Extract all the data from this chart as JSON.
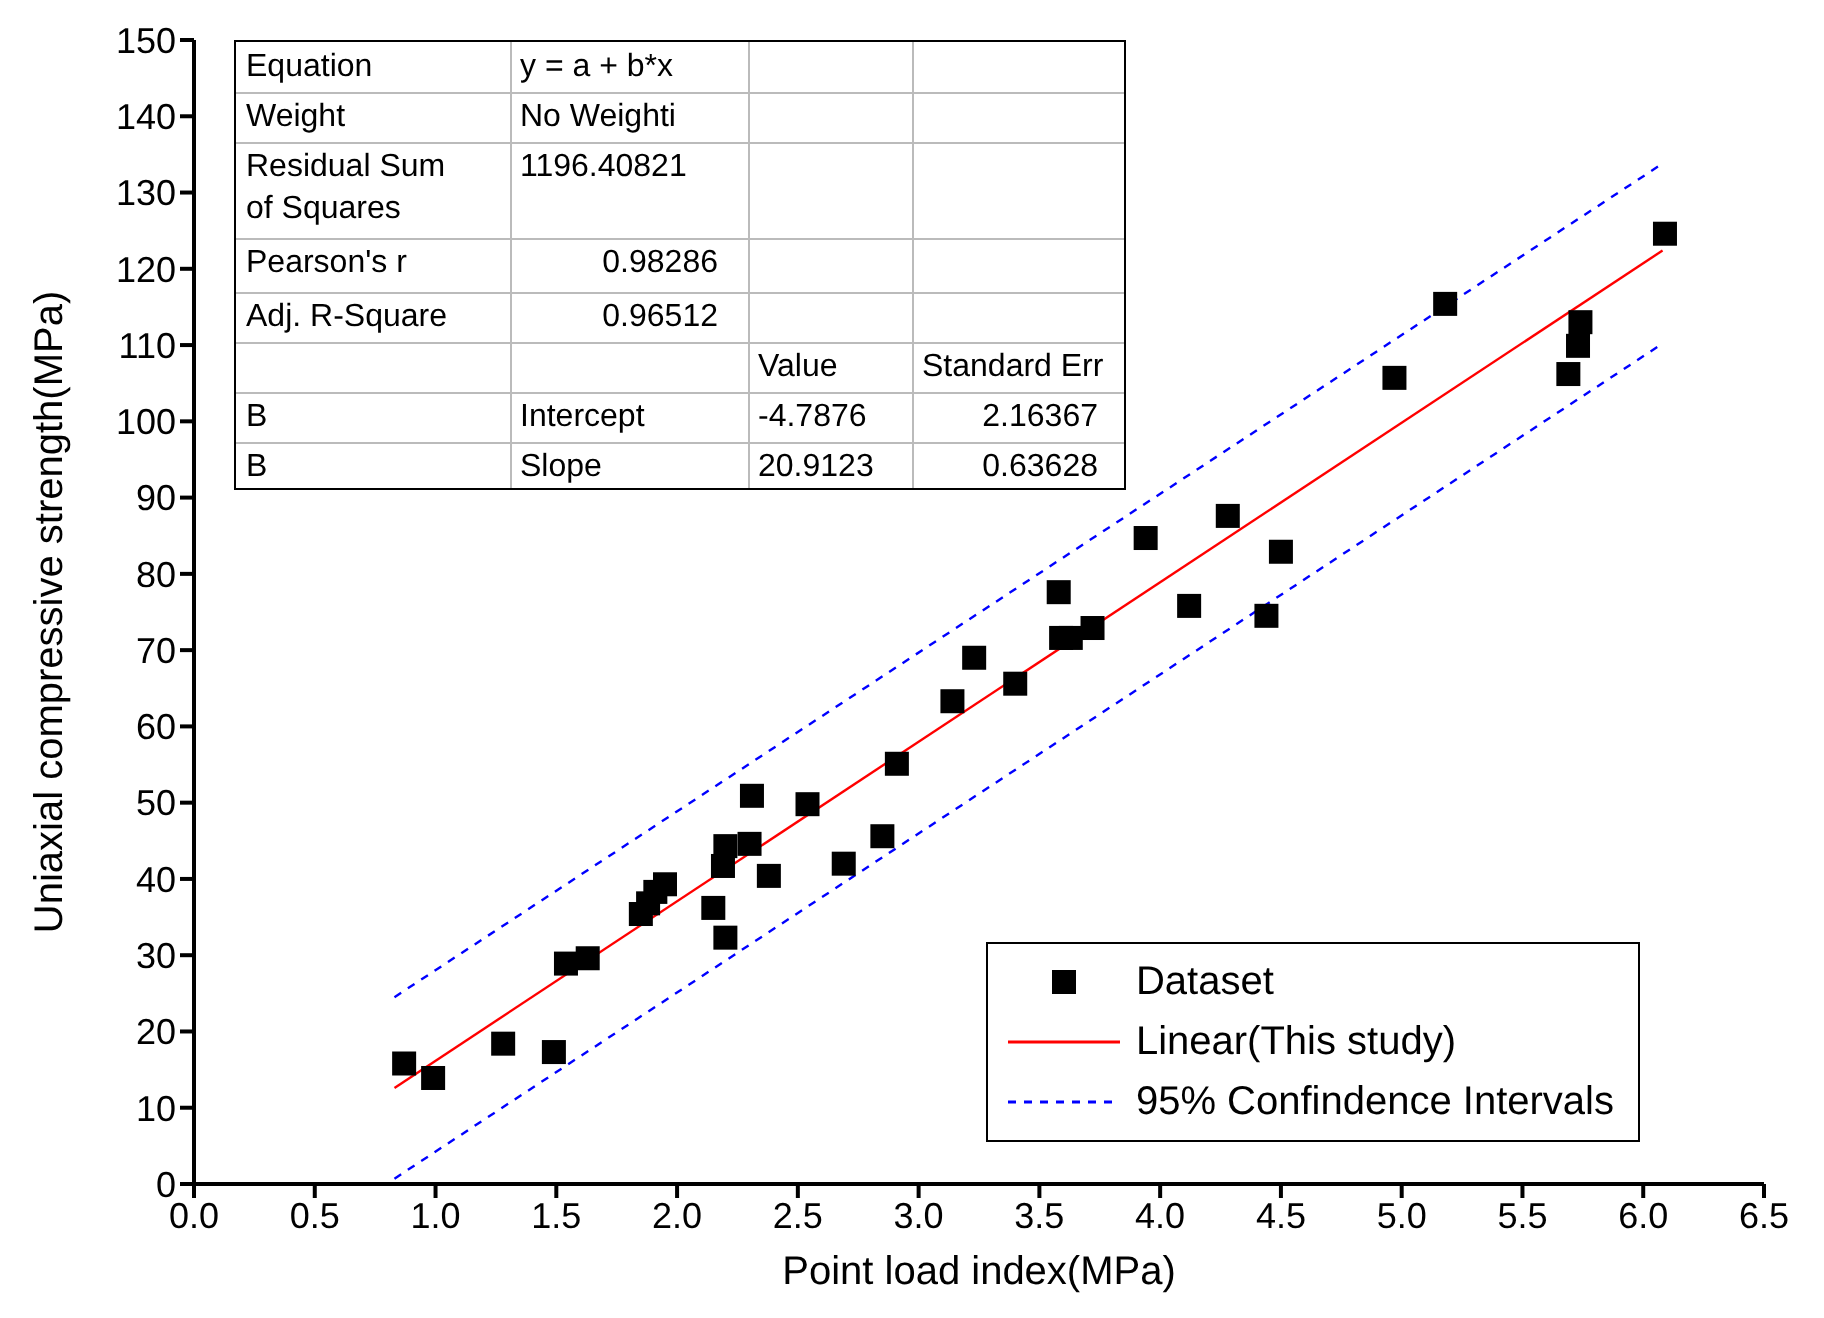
{
  "chart_data": {
    "type": "scatter",
    "xlabel": "Point load index(MPa)",
    "ylabel": "Uniaxial compressive strength(MPa)",
    "xlim": [
      0,
      6.5
    ],
    "xticks": [
      {
        "value": 0,
        "label": "0.0"
      },
      {
        "value": 0.5,
        "label": "0.5"
      },
      {
        "value": 1,
        "label": "1.0"
      },
      {
        "value": 1.5,
        "label": "1.5"
      },
      {
        "value": 2,
        "label": "2.0"
      },
      {
        "value": 2.5,
        "label": "2.5"
      },
      {
        "value": 3,
        "label": "3.0"
      },
      {
        "value": 3.5,
        "label": "3.5"
      },
      {
        "value": 4,
        "label": "4.0"
      },
      {
        "value": 4.5,
        "label": "4.5"
      },
      {
        "value": 5,
        "label": "5.0"
      },
      {
        "value": 5.5,
        "label": "5.5"
      },
      {
        "value": 6,
        "label": "6.0"
      },
      {
        "value": 6.5,
        "label": "6.5"
      }
    ],
    "ylim": [
      0,
      150
    ],
    "yticks": [
      0,
      10,
      20,
      30,
      40,
      50,
      60,
      70,
      80,
      90,
      100,
      110,
      120,
      130,
      140,
      150
    ],
    "legend": "bottom right",
    "grid": false,
    "series": [
      {
        "name": "Dataset",
        "marker": "square",
        "color": "#000000",
        "x": [
          0.87,
          0.99,
          1.28,
          1.49,
          1.54,
          1.63,
          1.85,
          1.88,
          1.91,
          1.95,
          2.15,
          2.2,
          2.19,
          2.2,
          2.3,
          2.31,
          2.38,
          2.54,
          2.69,
          2.85,
          2.91,
          3.14,
          3.23,
          3.4,
          3.58,
          3.59,
          3.63,
          3.72,
          3.94,
          4.12,
          4.28,
          4.44,
          4.5,
          4.97,
          5.18,
          5.69,
          5.73,
          5.74,
          6.09
        ],
        "values": [
          15.8,
          13.9,
          18.4,
          17.3,
          28.9,
          29.6,
          35.4,
          36.8,
          38.3,
          39.3,
          36.2,
          32.3,
          41.7,
          44.3,
          44.6,
          50.9,
          40.4,
          49.8,
          42,
          45.6,
          55.1,
          63.3,
          69,
          65.6,
          77.6,
          71.6,
          71.6,
          72.9,
          84.7,
          75.8,
          87.6,
          74.5,
          82.9,
          105.7,
          115.4,
          106.2,
          109.9,
          113,
          124.6
        ]
      },
      {
        "name": "Linear(This study)",
        "type": "line",
        "marker": "none",
        "line_style": "solid",
        "color": "#ff0000",
        "x": [
          0.83,
          6.08
        ],
        "values": [
          12.6,
          122.4
        ]
      },
      {
        "name": "95% Confindence Intervals",
        "type": "line",
        "marker": "none",
        "line_style": "dashed",
        "color": "#0000ff",
        "x": [
          0.83,
          6.08
        ],
        "values": [
          24.5,
          133.8
        ]
      },
      {
        "type": "line",
        "marker": "none",
        "line_style": "dashed",
        "color": "#0000ff",
        "x": [
          0.83,
          6.08
        ],
        "values": [
          0.7,
          110.2
        ]
      }
    ],
    "annotations": [
      "Equation",
      "y = a + b*x",
      "Weight",
      "No Weighti",
      "Residual Sum of Squares",
      "1196.40821",
      "Pearson's r",
      "0.98286",
      "Adj. R-Square",
      "0.96512",
      "Value",
      "Standard Err",
      "B",
      "Intercept",
      "-4.7876",
      "2.16367",
      "B",
      "Slope",
      "20.9123",
      "0.63628"
    ]
  }
}
